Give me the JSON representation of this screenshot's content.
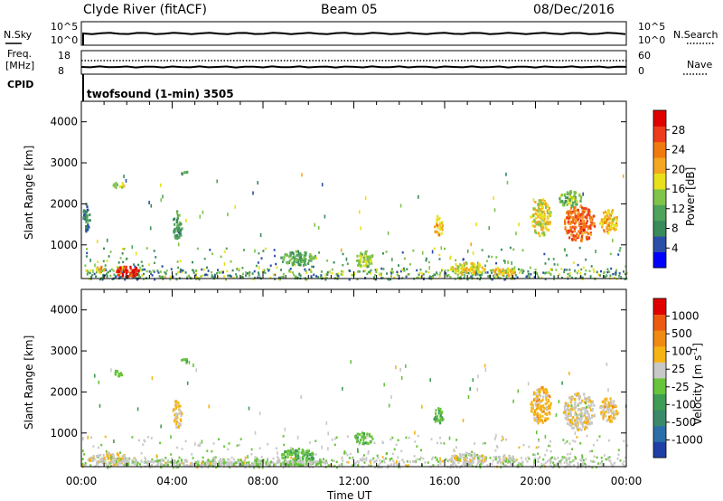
{
  "header": {
    "station": "Clyde River (fitACF)",
    "beam": "Beam 05",
    "date": "08/Dec/2016"
  },
  "top_panels": {
    "nsky_label": "N.Sky",
    "nsky_ticks": [
      "10^5",
      "10^0"
    ],
    "nsearch_label": "N.Search",
    "nsearch_ticks": [
      "10^5",
      "10^0"
    ],
    "freq_label": "Freq.",
    "freq_unit": "[MHz]",
    "freq_ticks": [
      "18",
      "8"
    ],
    "nave_label": "Nave",
    "nave_ticks": [
      "60",
      "0"
    ],
    "cpid_label": "CPID",
    "cpid_value": "twofsound (1-min) 3505"
  },
  "colors": {
    "power_scale": [
      "#0000ff",
      "#2b4ea8",
      "#3a8a5a",
      "#4fa35b",
      "#80c44a",
      "#e8e01a",
      "#f5a623",
      "#f07a10",
      "#ee3b1b",
      "#e00000"
    ],
    "velocity_scale": [
      "#1f3fa6",
      "#2b6ea8",
      "#3a8a6a",
      "#3f9c55",
      "#68c43a",
      "#c8c8c8",
      "#f5b414",
      "#f08a14",
      "#ec5a10",
      "#e00000"
    ]
  },
  "chart_data": [
    {
      "type": "heatmap",
      "panel": "power",
      "ylabel": "Slant Range [km]",
      "yticks": [
        "4000",
        "3000",
        "2000",
        "1000"
      ],
      "colorbar_label": "Power [dB]",
      "colorbar_ticks": [
        "28",
        "24",
        "20",
        "16",
        "12",
        "8",
        "4"
      ],
      "x_ticks": [
        "00:00",
        "04:00",
        "08:00",
        "12:00",
        "16:00",
        "20:00",
        "00:00"
      ],
      "xlim_hours": [
        0,
        24
      ],
      "ylim_km": [
        180,
        4500
      ],
      "colorbar_range": [
        0,
        32
      ],
      "regions": [
        {
          "t": 0.8,
          "r": 420,
          "dt": 0.35,
          "dr": 180,
          "v": 20
        },
        {
          "t": 2.0,
          "r": 380,
          "dt": 1.1,
          "dr": 260,
          "v": 29
        },
        {
          "t": 1.6,
          "r": 2480,
          "dt": 0.5,
          "dr": 150,
          "v": 16
        },
        {
          "t": 4.5,
          "r": 2780,
          "dt": 0.4,
          "dr": 100,
          "v": 12
        },
        {
          "t": 4.2,
          "r": 1500,
          "dt": 0.4,
          "dr": 700,
          "v": 10
        },
        {
          "t": 0.2,
          "r": 1700,
          "dt": 0.3,
          "dr": 700,
          "v": 8
        },
        {
          "t": 9.5,
          "r": 700,
          "dt": 1.5,
          "dr": 350,
          "v": 12
        },
        {
          "t": 12.4,
          "r": 650,
          "dt": 0.8,
          "dr": 400,
          "v": 14
        },
        {
          "t": 15.7,
          "r": 1500,
          "dt": 0.4,
          "dr": 500,
          "v": 20
        },
        {
          "t": 17.0,
          "r": 450,
          "dt": 1.6,
          "dr": 300,
          "v": 18
        },
        {
          "t": 18.6,
          "r": 380,
          "dt": 1.0,
          "dr": 230,
          "v": 19
        },
        {
          "t": 20.2,
          "r": 1700,
          "dt": 0.9,
          "dr": 900,
          "v": 18
        },
        {
          "t": 21.9,
          "r": 1550,
          "dt": 1.4,
          "dr": 900,
          "v": 25
        },
        {
          "t": 23.2,
          "r": 1600,
          "dt": 0.8,
          "dr": 600,
          "v": 20
        },
        {
          "t": 21.5,
          "r": 2150,
          "dt": 1.0,
          "dr": 400,
          "v": 13
        }
      ]
    },
    {
      "type": "heatmap",
      "panel": "velocity",
      "ylabel": "Slant Range [km]",
      "yticks": [
        "4000",
        "3000",
        "2000",
        "1000"
      ],
      "colorbar_label": "Velocity [m s^-1]",
      "colorbar_ticks": [
        "1000",
        "500",
        "100",
        "25",
        "-25",
        "-100",
        "-500",
        "-1000"
      ],
      "x_ticks": [
        "00:00",
        "04:00",
        "08:00",
        "12:00",
        "16:00",
        "20:00",
        "00:00"
      ],
      "xlabel": "Time UT",
      "xlim_hours": [
        0,
        24
      ],
      "ylim_km": [
        180,
        4500
      ],
      "colorbar_range": [
        -1000,
        1000
      ],
      "regions": [
        {
          "t": 1.2,
          "r": 400,
          "dt": 1.8,
          "dr": 280,
          "v": 150
        },
        {
          "t": 1.6,
          "r": 2480,
          "dt": 0.5,
          "dr": 150,
          "v": -80
        },
        {
          "t": 4.5,
          "r": 2780,
          "dt": 0.4,
          "dr": 100,
          "v": -100
        },
        {
          "t": 4.2,
          "r": 1500,
          "dt": 0.4,
          "dr": 700,
          "v": 200
        },
        {
          "t": 9.5,
          "r": 450,
          "dt": 1.5,
          "dr": 400,
          "v": -150
        },
        {
          "t": 12.4,
          "r": 900,
          "dt": 0.8,
          "dr": 300,
          "v": -120
        },
        {
          "t": 15.7,
          "r": 1400,
          "dt": 0.4,
          "dr": 500,
          "v": -150
        },
        {
          "t": 17.0,
          "r": 400,
          "dt": 1.6,
          "dr": 300,
          "v": 120
        },
        {
          "t": 18.6,
          "r": 380,
          "dt": 1.0,
          "dr": 230,
          "v": 60
        },
        {
          "t": 20.2,
          "r": 1700,
          "dt": 0.9,
          "dr": 900,
          "v": 300
        },
        {
          "t": 21.9,
          "r": 1550,
          "dt": 1.4,
          "dr": 900,
          "v": 150
        },
        {
          "t": 23.2,
          "r": 1600,
          "dt": 0.8,
          "dr": 600,
          "v": 250
        },
        {
          "t": 6.0,
          "r": 300,
          "dt": 10.0,
          "dr": 150,
          "v": 40
        }
      ]
    }
  ]
}
